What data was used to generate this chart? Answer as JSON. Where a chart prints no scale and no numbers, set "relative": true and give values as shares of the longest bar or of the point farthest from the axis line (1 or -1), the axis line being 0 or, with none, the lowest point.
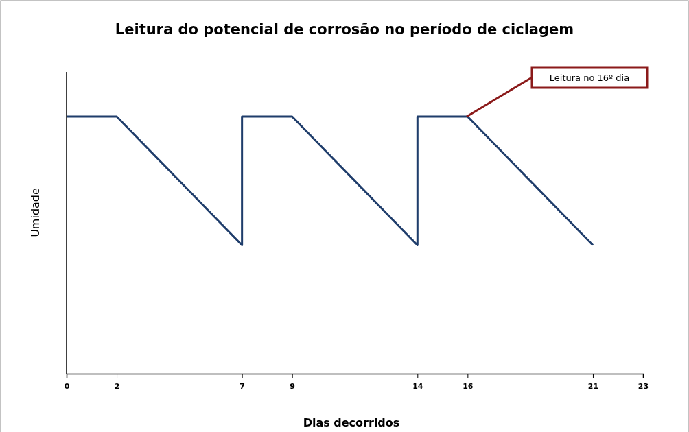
{
  "chart_data": {
    "type": "line",
    "title": "Leitura do potencial de corrosão no período de ciclagem",
    "xlabel": "Dias decorridos",
    "ylabel": "Umidade",
    "relative": true,
    "x": [
      0,
      2,
      7,
      7,
      9,
      14,
      14,
      16,
      21
    ],
    "xlim": [
      0,
      23
    ],
    "xticks": [
      0,
      2,
      7,
      9,
      14,
      16,
      21,
      23
    ],
    "series": [
      {
        "color": "#1f3d6b",
        "values": [
          1,
          1,
          0.5,
          1,
          1,
          0.5,
          1,
          1,
          0.5
        ]
      }
    ],
    "annotations": [
      "Leitura no 16º dia"
    ],
    "marker": "none",
    "line_style": "solid",
    "grid": false
  }
}
